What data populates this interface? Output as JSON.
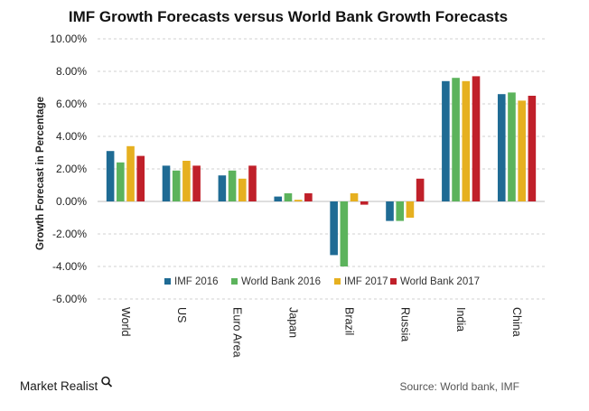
{
  "chart_data": {
    "type": "bar",
    "title": "IMF Growth Forecasts versus World Bank Growth Forecasts",
    "xlabel": "",
    "ylabel": "Growth Forecast in Percentage",
    "ylim": [
      -6,
      10
    ],
    "yticks": [
      10,
      8,
      6,
      4,
      2,
      0,
      -2,
      -4,
      -6
    ],
    "ytick_labels": [
      "10.00%",
      "8.00%",
      "6.00%",
      "4.00%",
      "2.00%",
      "0.00%",
      "-2.00%",
      "-4.00%",
      "-6.00%"
    ],
    "grid": true,
    "legend_position": "bottom-center",
    "categories": [
      "World",
      "US",
      "Euro Area",
      "Japan",
      "Brazil",
      "Russia",
      "India",
      "China"
    ],
    "series": [
      {
        "name": "IMF 2016",
        "color": "#1f6b94",
        "values": [
          3.1,
          2.2,
          1.6,
          0.3,
          -3.3,
          -1.2,
          7.4,
          6.6
        ]
      },
      {
        "name": "World Bank 2016",
        "color": "#5cb35c",
        "values": [
          2.4,
          1.9,
          1.9,
          0.5,
          -4.0,
          -1.2,
          7.6,
          6.7
        ]
      },
      {
        "name": "IMF 2017",
        "color": "#e6b020",
        "values": [
          3.4,
          2.5,
          1.4,
          0.1,
          0.5,
          -1.0,
          7.4,
          6.2
        ]
      },
      {
        "name": "World Bank 2017",
        "color": "#c0202a",
        "values": [
          2.8,
          2.2,
          2.2,
          0.5,
          -0.2,
          1.4,
          7.7,
          6.5
        ]
      }
    ]
  },
  "branding": {
    "logo_text": "Market Realist",
    "source_text": "Source: World bank, IMF"
  }
}
